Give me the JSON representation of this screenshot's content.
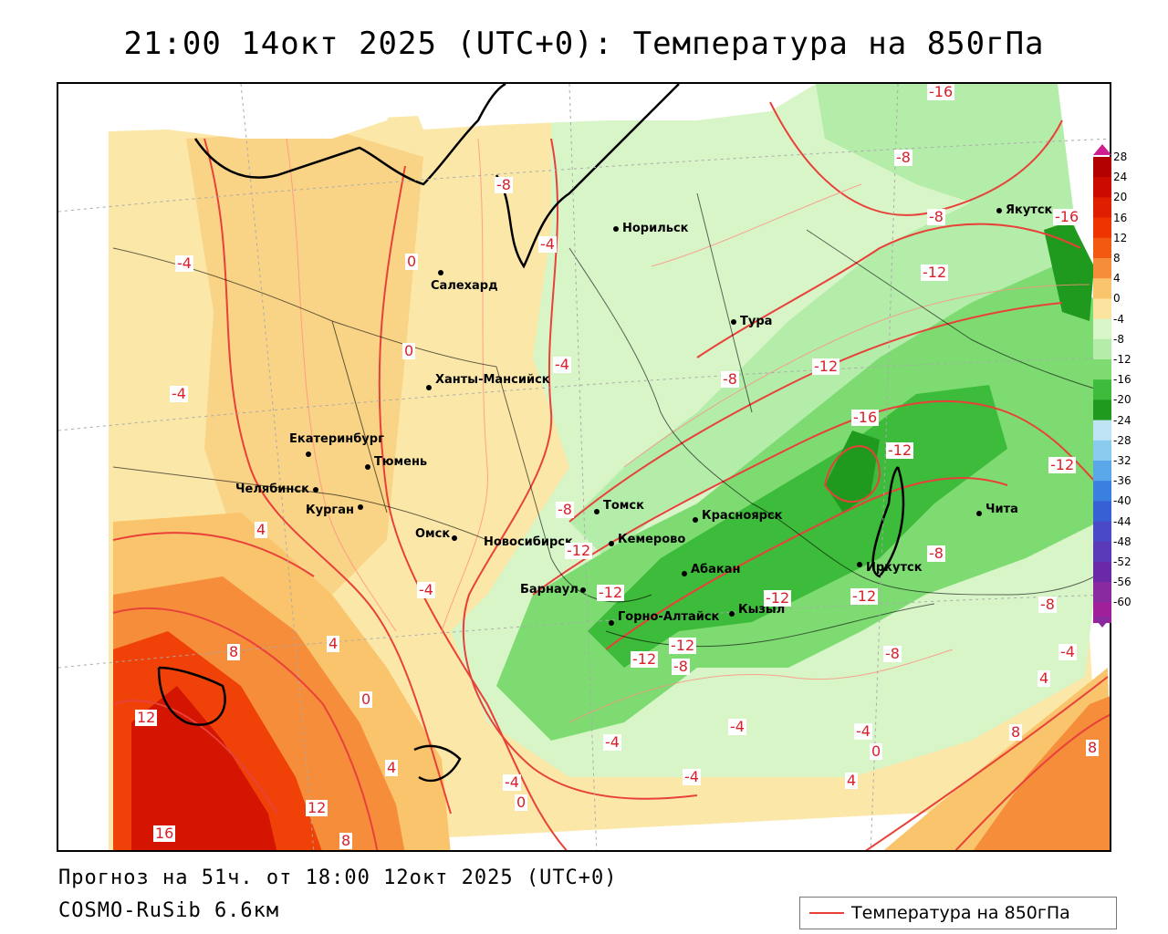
{
  "header": {
    "title": "21:00 14окт 2025 (UTC+0): Температура на 850гПа"
  },
  "footer": {
    "forecast": "Прогноз на 51ч. от 18:00 12окт 2025 (UTC+0)",
    "model": "COSMO-RuSib 6.6км"
  },
  "legend": {
    "label": "Температура на 850гПа",
    "line_color": "#e8413a"
  },
  "color_scale": {
    "values": [
      "28",
      "24",
      "20",
      "16",
      "12",
      "8",
      "4",
      "0",
      "-4",
      "-8",
      "-12",
      "-16",
      "-20",
      "-24",
      "-28",
      "-32",
      "-36",
      "-40",
      "-44",
      "-48",
      "-52",
      "-56",
      "-60"
    ],
    "colors": [
      "#b30000",
      "#cc0a00",
      "#e01f00",
      "#ee3500",
      "#f15a10",
      "#f68d3a",
      "#f9c46b",
      "#fbe3a0",
      "#d8f5c8",
      "#b4ecaa",
      "#7ddb72",
      "#3dbb3a",
      "#1f9a1f",
      "#bfe4f5",
      "#8ccbf0",
      "#5aa8ea",
      "#3b7fe0",
      "#3660d4",
      "#4a4ac8",
      "#5a3ab8",
      "#6a2aa8",
      "#8a2aa0",
      "#a0209a"
    ]
  },
  "cities": [
    {
      "name": "Норильск"
    },
    {
      "name": "Якутск"
    },
    {
      "name": "Салехард"
    },
    {
      "name": "Тура"
    },
    {
      "name": "Ханты-Мансийск"
    },
    {
      "name": "Екатеринбург"
    },
    {
      "name": "Тюмень"
    },
    {
      "name": "Челябинск"
    },
    {
      "name": "Курган"
    },
    {
      "name": "Омск"
    },
    {
      "name": "Новосибирск"
    },
    {
      "name": "Томск"
    },
    {
      "name": "Кемерово"
    },
    {
      "name": "Красноярск"
    },
    {
      "name": "Барнаул"
    },
    {
      "name": "Абакан"
    },
    {
      "name": "Горно-Алтайск"
    },
    {
      "name": "Кызыл"
    },
    {
      "name": "Иркутск"
    },
    {
      "name": "Чита"
    }
  ],
  "contour_labels": [
    "-16",
    "-8",
    "-8",
    "-16",
    "-12",
    "-4",
    "0",
    "-4",
    "-8",
    "0",
    "-4",
    "-12",
    "-16",
    "-4",
    "-12",
    "-12",
    "-8",
    "-12",
    "-12",
    "-8",
    "-12",
    "-12",
    "-8",
    "4",
    "-4",
    "-12",
    "-8",
    "-12",
    "8",
    "4",
    "-8",
    "-4",
    "0",
    "-8",
    "-4",
    "4",
    "12",
    "-4",
    "0",
    "12",
    "-4",
    "0",
    "4",
    "16",
    "8",
    "-4",
    "8",
    "8",
    "-4",
    "4"
  ]
}
